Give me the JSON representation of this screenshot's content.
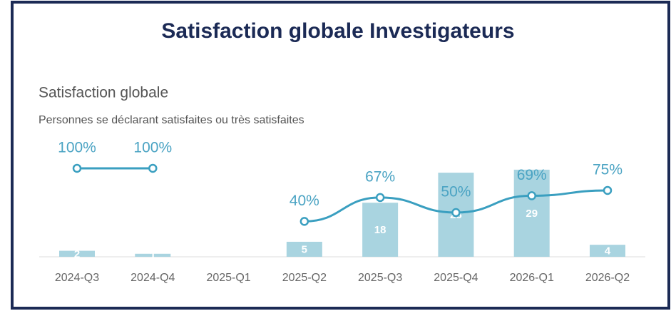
{
  "title": "Satisfaction globale Investigateurs",
  "chart_data": {
    "type": "combo",
    "title": "Satisfaction globale",
    "subtitle": "Personnes se déclarant satisfaites ou très satisfaites",
    "categories": [
      "2024-Q3",
      "2024-Q4",
      "2025-Q1",
      "2025-Q2",
      "2025-Q3",
      "2025-Q4",
      "2026-Q1",
      "2026-Q2"
    ],
    "series": [
      {
        "type": "bar",
        "color": "#a9d4e0",
        "values": [
          2,
          1,
          null,
          5,
          18,
          28,
          29,
          4
        ]
      },
      {
        "type": "line",
        "axis": "y2",
        "color": "#3a9fc0",
        "values": [
          100,
          100,
          null,
          40,
          67,
          50,
          69,
          75
        ],
        "value_labels": [
          "100%",
          "100%",
          null,
          "40%",
          "67%",
          "50%",
          "69%",
          "75%"
        ]
      }
    ],
    "ylim": [
      0,
      38
    ],
    "y2lim": [
      0,
      129
    ]
  }
}
